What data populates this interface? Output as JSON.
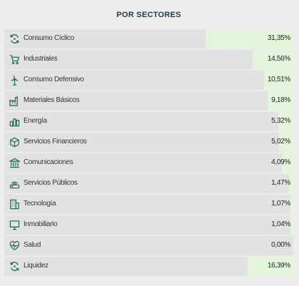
{
  "title": "POR SECTORES",
  "colors": {
    "fill": "#e3f6dc",
    "row": "#e2e2e2",
    "icon": "#2e6b60",
    "title": "#1f3a4a"
  },
  "chart_data": {
    "type": "bar",
    "orientation": "horizontal",
    "title": "POR SECTORES",
    "categories": [
      "Consumo Cíclico",
      "Industriales",
      "Consumo Defensivo",
      "Materiales Básicos",
      "Energía",
      "Servicios Financieros",
      "Comunicaciones",
      "Servicios Públicos",
      "Tecnología",
      "Inmobiliario",
      "Salud",
      "Liquidez"
    ],
    "values": [
      31.35,
      14.56,
      10.51,
      9.18,
      5.32,
      5.02,
      4.09,
      1.47,
      1.07,
      1.04,
      0.0,
      16.39
    ],
    "value_labels": [
      "31,35%",
      "14,56%",
      "10,51%",
      "9,18%",
      "5,32%",
      "5,02%",
      "4,09%",
      "1,47%",
      "1,07%",
      "1,04%",
      "0,00%",
      "16,39%"
    ],
    "icons": [
      "cycle-icon",
      "cart-icon",
      "wind-turbine-icon",
      "factory-icon",
      "energy-bars-icon",
      "cube-icon",
      "institution-icon",
      "router-icon",
      "building-icon",
      "monitor-icon",
      "heart-pulse-icon",
      "cycle-icon"
    ],
    "xlim": [
      0,
      100
    ],
    "grid": false,
    "legend": "none"
  }
}
